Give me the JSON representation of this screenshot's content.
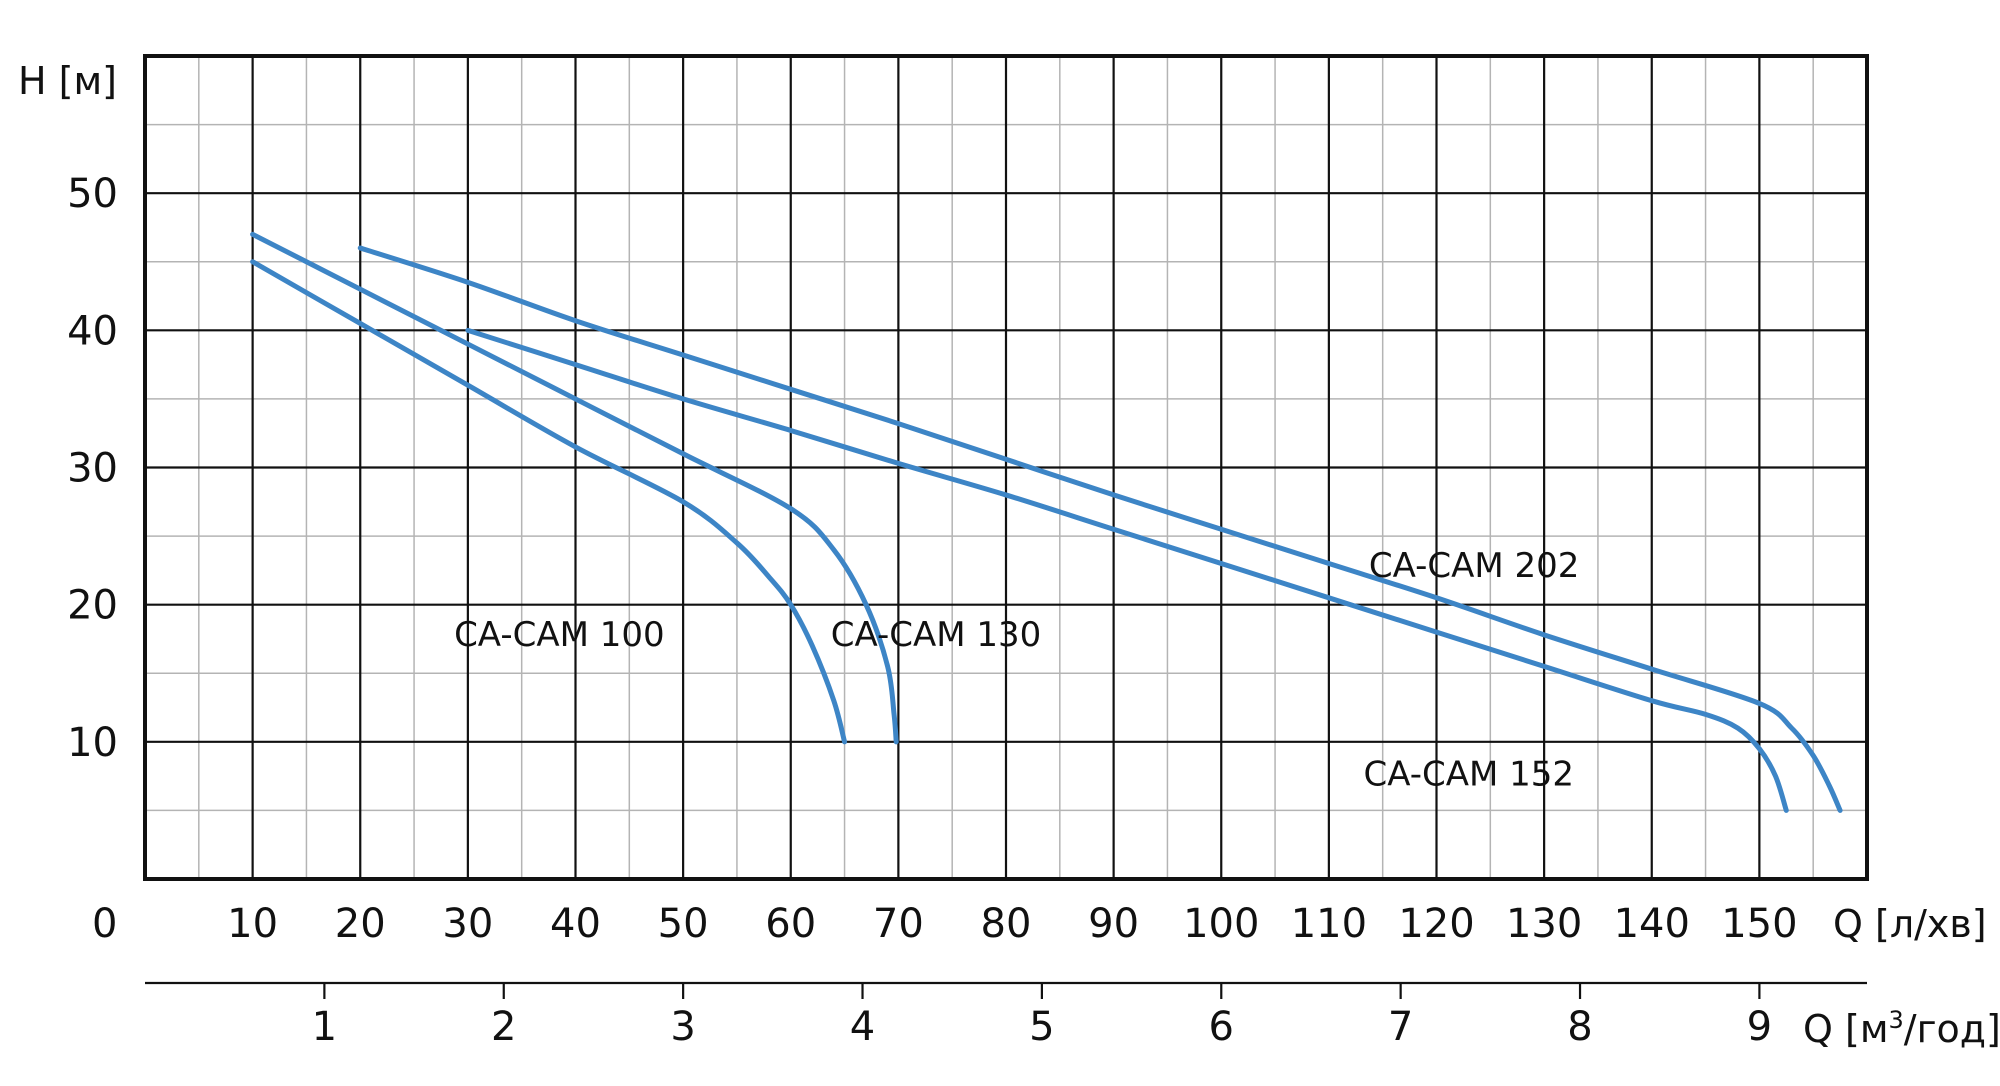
{
  "chart_data": {
    "type": "line",
    "ylabel": "H [м]",
    "xlabel": "Q [л/хв]",
    "x2label_base": "Q [м",
    "x2label_sup": "3",
    "x2label_tail": "/год]",
    "origin_label": "0",
    "xlim": [
      0,
      160
    ],
    "ylim": [
      0,
      60
    ],
    "x_ticks": [
      "10",
      "20",
      "30",
      "40",
      "50",
      "60",
      "70",
      "80",
      "90",
      "100",
      "110",
      "120",
      "130",
      "140",
      "150"
    ],
    "x_tick_values": [
      10,
      20,
      30,
      40,
      50,
      60,
      70,
      80,
      90,
      100,
      110,
      120,
      130,
      140,
      150
    ],
    "y_ticks": [
      "10",
      "20",
      "30",
      "40",
      "50"
    ],
    "y_tick_values": [
      10,
      20,
      30,
      40,
      50
    ],
    "x2_ticks": [
      "1",
      "2",
      "3",
      "4",
      "5",
      "6",
      "7",
      "8",
      "9"
    ],
    "x2_tick_values": [
      1,
      2,
      3,
      4,
      5,
      6,
      7,
      8,
      9
    ],
    "x2_scale_lpm_per_unit": 16.667,
    "grid": true,
    "line_color": "#3d85c6",
    "series": [
      {
        "name": "CA-CAM 100",
        "label_at": [
          38.5,
          17
        ],
        "points": [
          [
            10,
            45
          ],
          [
            20,
            40.5
          ],
          [
            30,
            36
          ],
          [
            40,
            31.5
          ],
          [
            50,
            27.5
          ],
          [
            55,
            24.5
          ],
          [
            58,
            22
          ],
          [
            60,
            20
          ],
          [
            62,
            17
          ],
          [
            64,
            13
          ],
          [
            65,
            10
          ]
        ]
      },
      {
        "name": "CA-CAM 130",
        "label_at": [
          73.5,
          17
        ],
        "points": [
          [
            10,
            47
          ],
          [
            20,
            43
          ],
          [
            30,
            39
          ],
          [
            40,
            35
          ],
          [
            50,
            31
          ],
          [
            60,
            27
          ],
          [
            64,
            24
          ],
          [
            67,
            20
          ],
          [
            69,
            15.5
          ],
          [
            69.6,
            12
          ],
          [
            69.8,
            10
          ]
        ]
      },
      {
        "name": "CA-CAM 152",
        "label_at": [
          123,
          6.8
        ],
        "points": [
          [
            30,
            40
          ],
          [
            40,
            37.5
          ],
          [
            50,
            35
          ],
          [
            60,
            32.7
          ],
          [
            70,
            30.3
          ],
          [
            80,
            28
          ],
          [
            90,
            25.5
          ],
          [
            100,
            23
          ],
          [
            110,
            20.5
          ],
          [
            120,
            18
          ],
          [
            130,
            15.5
          ],
          [
            140,
            13
          ],
          [
            145,
            12
          ],
          [
            148,
            11
          ],
          [
            150,
            9.5
          ],
          [
            151.5,
            7.5
          ],
          [
            152.5,
            5
          ]
        ]
      },
      {
        "name": "CA-CAM 202",
        "label_at": [
          123.5,
          22
        ],
        "points": [
          [
            20,
            46
          ],
          [
            30,
            43.5
          ],
          [
            40,
            40.7
          ],
          [
            50,
            38.2
          ],
          [
            60,
            35.7
          ],
          [
            70,
            33.2
          ],
          [
            80,
            30.6
          ],
          [
            90,
            28
          ],
          [
            100,
            25.5
          ],
          [
            110,
            23
          ],
          [
            120,
            20.5
          ],
          [
            130,
            17.8
          ],
          [
            140,
            15.3
          ],
          [
            150,
            12.8
          ],
          [
            153,
            11
          ],
          [
            155,
            9
          ],
          [
            156.5,
            6.8
          ],
          [
            157.5,
            5
          ]
        ]
      }
    ]
  }
}
